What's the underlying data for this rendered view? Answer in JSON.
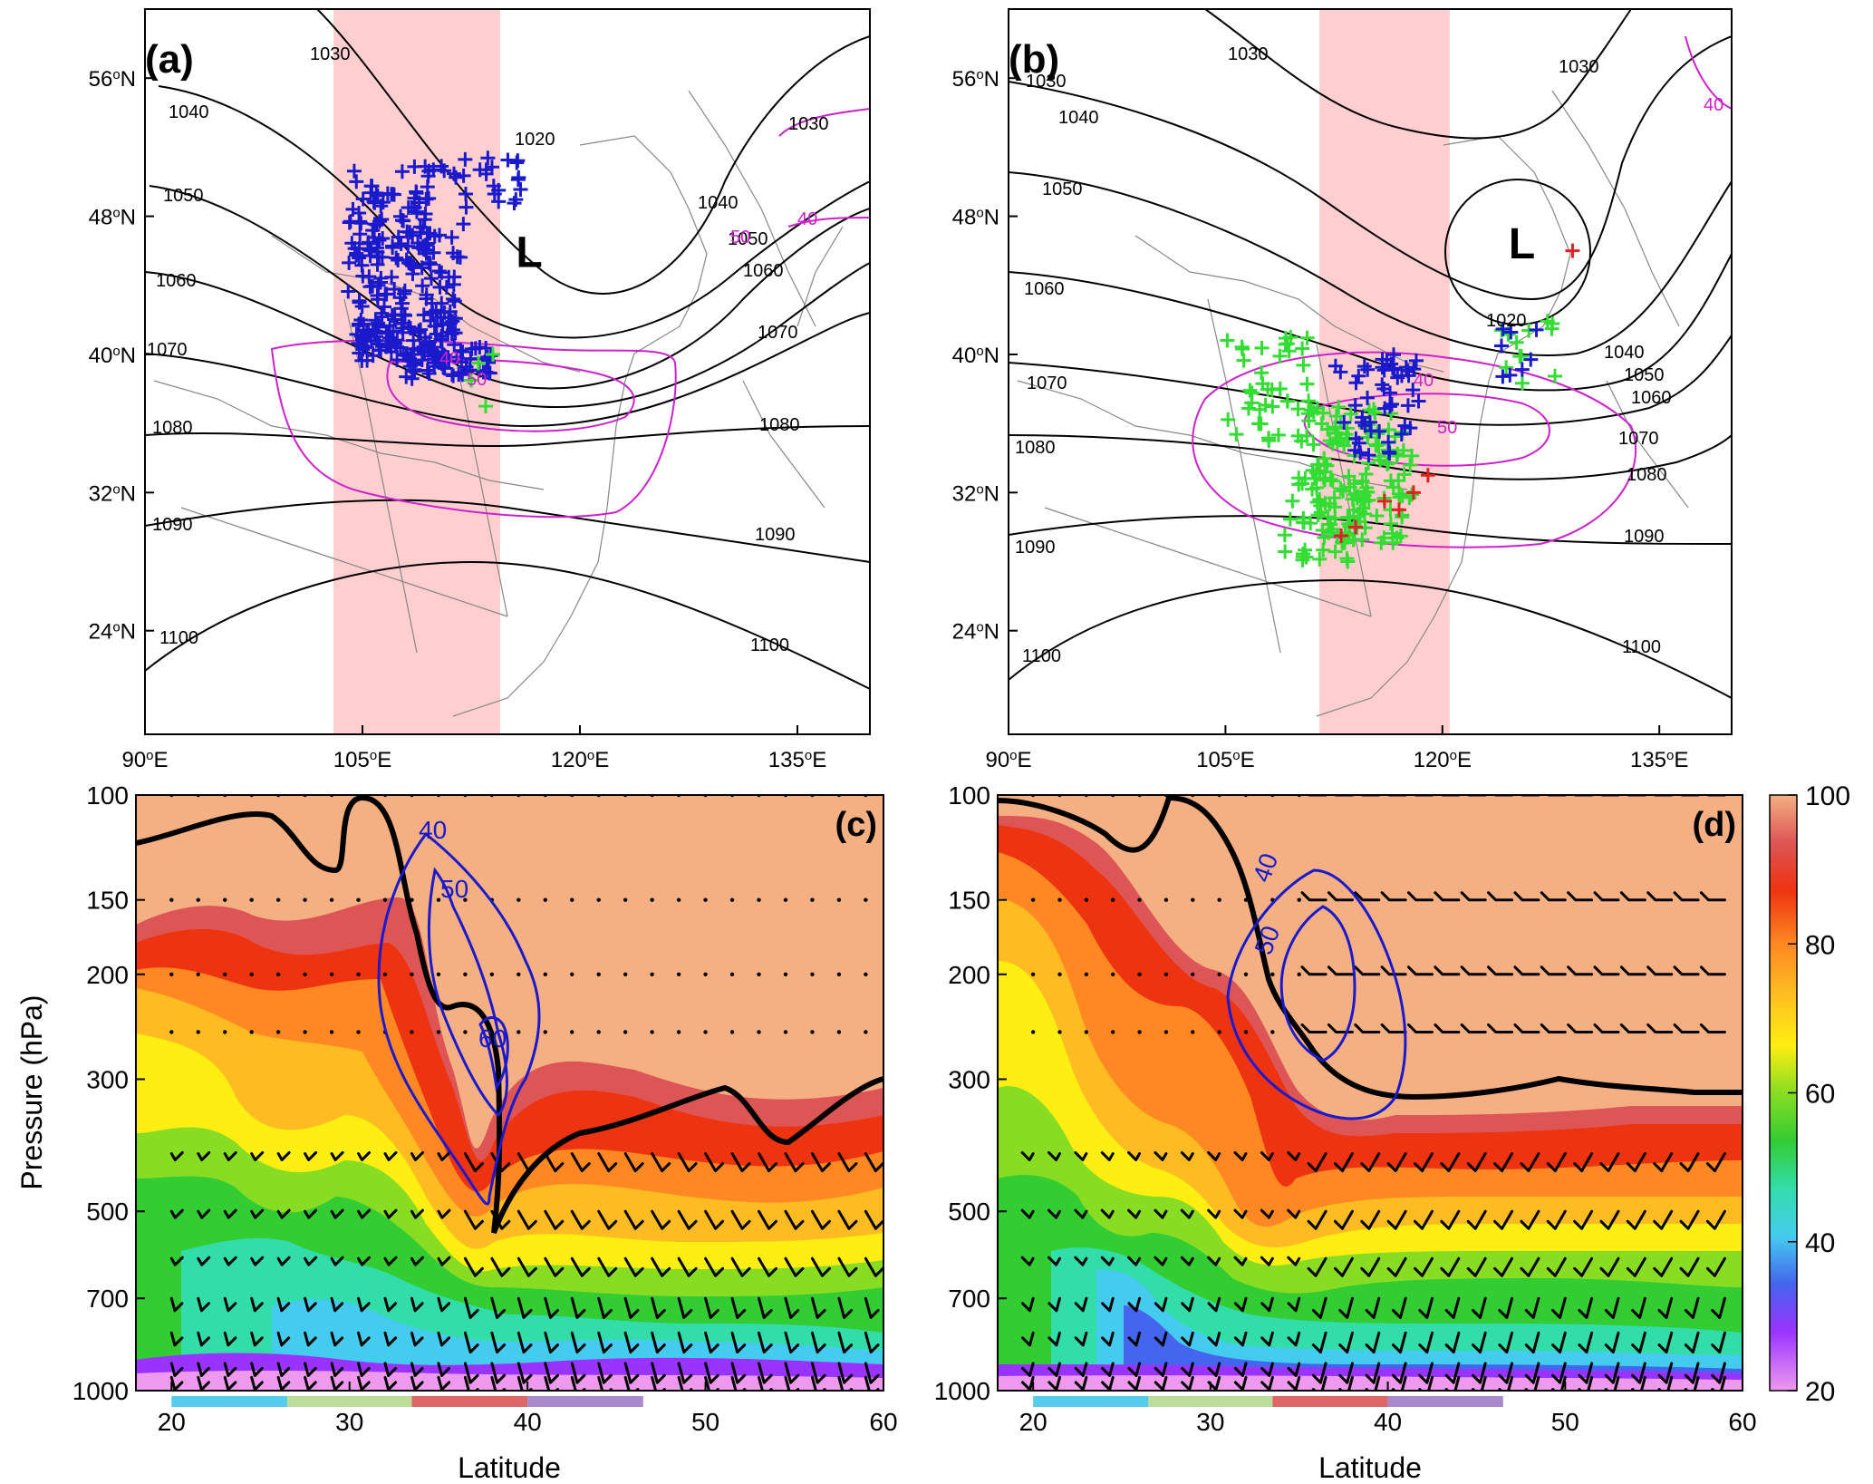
{
  "chart_data": [
    {
      "type": "map",
      "panel_label": "(a)",
      "xticks": [
        "90",
        "105",
        "120",
        "135"
      ],
      "xtick_suffix": "E",
      "yticks": [
        "24",
        "32",
        "40",
        "48",
        "56"
      ],
      "ytick_suffix": "N",
      "lon_range": [
        90,
        140
      ],
      "lat_range": [
        18,
        60
      ],
      "shaded_lon_band": [
        103,
        114.5
      ],
      "low_label": "L",
      "low_center": [
        116.5,
        46
      ],
      "height_contour_labels": [
        "1020",
        "1030",
        "1030",
        "1040",
        "1040",
        "1050",
        "1050",
        "1060",
        "1060",
        "1070",
        "1070",
        "1080",
        "1080",
        "1090",
        "1090",
        "1100",
        "1100"
      ],
      "jet_contour_labels": [
        "40",
        "40",
        "50",
        "50"
      ],
      "marker_colors": {
        "blue": "#1a1acc",
        "green": "#33dd33",
        "red": "#dd2222"
      }
    },
    {
      "type": "map",
      "panel_label": "(b)",
      "xticks": [
        "90",
        "105",
        "120",
        "135"
      ],
      "xtick_suffix": "E",
      "yticks": [
        "24",
        "32",
        "40",
        "48",
        "56"
      ],
      "ytick_suffix": "N",
      "lon_range": [
        90,
        140
      ],
      "lat_range": [
        18,
        60
      ],
      "shaded_lon_band": [
        111.5,
        120.5
      ],
      "low_label": "L",
      "low_center": [
        125.5,
        46.5
      ],
      "height_contour_labels": [
        "1020",
        "1030",
        "1030",
        "1030",
        "1040",
        "1040",
        "1050",
        "1050",
        "1060",
        "1060",
        "1070",
        "1070",
        "1080",
        "1080",
        "1090",
        "1090",
        "1100",
        "1100"
      ],
      "jet_contour_labels": [
        "40",
        "40",
        "50"
      ]
    },
    {
      "type": "cross-section",
      "panel_label": "(c)",
      "ylabel": "Pressure (hPa)",
      "xlabel": "Latitude",
      "xticks": [
        "20",
        "30",
        "40",
        "50",
        "60"
      ],
      "xlim": [
        18,
        60
      ],
      "yticks": [
        "100",
        "150",
        "200",
        "300",
        "500",
        "700",
        "1000"
      ],
      "ylim": [
        100,
        1000
      ],
      "jet_contour_labels": [
        "40",
        "50",
        "60"
      ],
      "latitude_bands": [
        {
          "range": [
            20,
            26.5
          ],
          "color": "#55ccee"
        },
        {
          "range": [
            26.5,
            33.5
          ],
          "color": "#bbdd99"
        },
        {
          "range": [
            33.5,
            40
          ],
          "color": "#dd6666"
        },
        {
          "range": [
            40,
            46.5
          ],
          "color": "#aa88cc"
        }
      ]
    },
    {
      "type": "cross-section",
      "panel_label": "(d)",
      "xlabel": "Latitude",
      "xticks": [
        "20",
        "30",
        "40",
        "50",
        "60"
      ],
      "xlim": [
        18,
        60
      ],
      "yticks": [
        "100",
        "150",
        "200",
        "300",
        "500",
        "700",
        "1000"
      ],
      "ylim": [
        100,
        1000
      ],
      "jet_contour_labels": [
        "40",
        "50"
      ],
      "latitude_bands": [
        {
          "range": [
            20,
            26.5
          ],
          "color": "#55ccee"
        },
        {
          "range": [
            26.5,
            33.5
          ],
          "color": "#bbdd99"
        },
        {
          "range": [
            33.5,
            40
          ],
          "color": "#dd6666"
        },
        {
          "range": [
            40,
            46.5
          ],
          "color": "#aa88cc"
        }
      ]
    }
  ],
  "colorbar": {
    "ticks": [
      "100",
      "80",
      "60",
      "40",
      "20"
    ],
    "range": [
      20,
      100
    ],
    "colors": [
      "#ee99ee",
      "#9933ff",
      "#4466ee",
      "#44ccee",
      "#33ddaa",
      "#33cc33",
      "#88dd22",
      "#ccee22",
      "#ffee11",
      "#ffbb22",
      "#ff8822",
      "#ee3311",
      "#dd5555",
      "#f4b082"
    ]
  }
}
